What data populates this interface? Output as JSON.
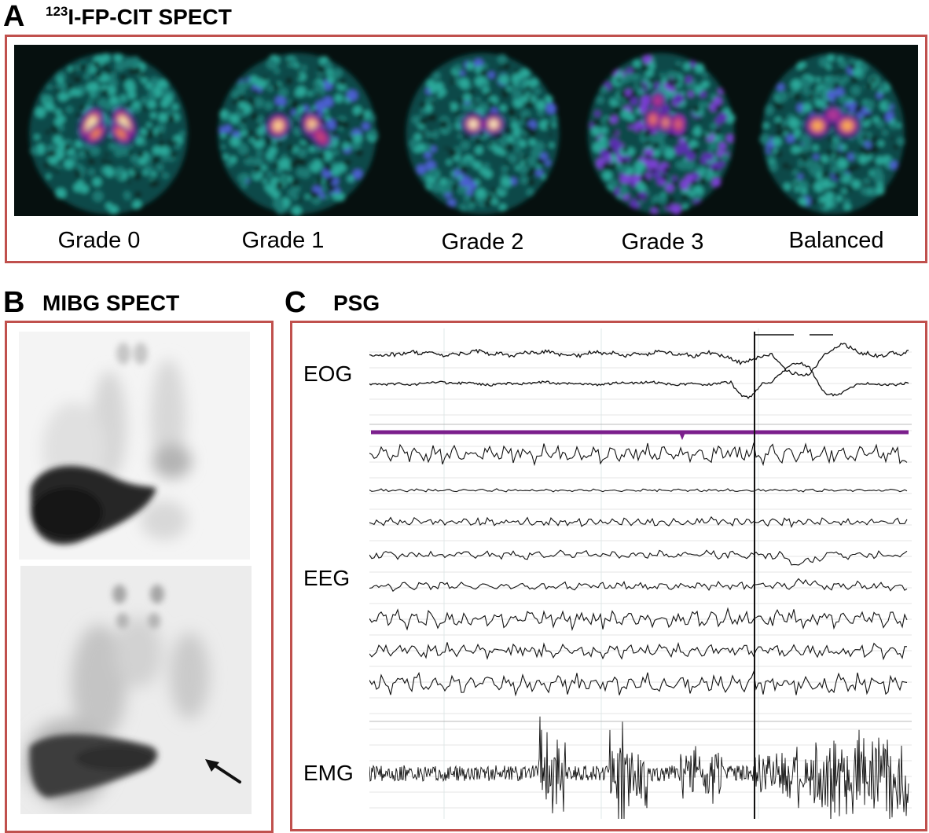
{
  "panel_a": {
    "letter": "A",
    "title_sup": "123",
    "title_main": "I-FP-CIT SPECT",
    "scans": [
      {
        "label": "Grade 0",
        "pattern": "comma",
        "noise": "low"
      },
      {
        "label": "Grade 1",
        "pattern": "comma-reduced",
        "noise": "medium"
      },
      {
        "label": "Grade 2",
        "pattern": "caudate-only",
        "noise": "medium"
      },
      {
        "label": "Grade 3",
        "pattern": "absent",
        "noise": "high"
      },
      {
        "label": "Balanced",
        "pattern": "balanced",
        "noise": "medium"
      }
    ]
  },
  "panel_b": {
    "letter": "B",
    "title": "MIBG SPECT",
    "images": [
      {
        "description_icon": "normal-cardiac-uptake"
      },
      {
        "description_icon": "reduced-cardiac-uptake",
        "arrow": "arrow-icon"
      }
    ]
  },
  "panel_c": {
    "letter": "C",
    "title": "PSG",
    "labels": {
      "eog": "EOG",
      "eeg": "EEG",
      "emg": "EMG"
    }
  },
  "colors": {
    "frame": "#c0504d",
    "marker_line": "#7b1f8c",
    "scan_bg": "#06100f"
  }
}
